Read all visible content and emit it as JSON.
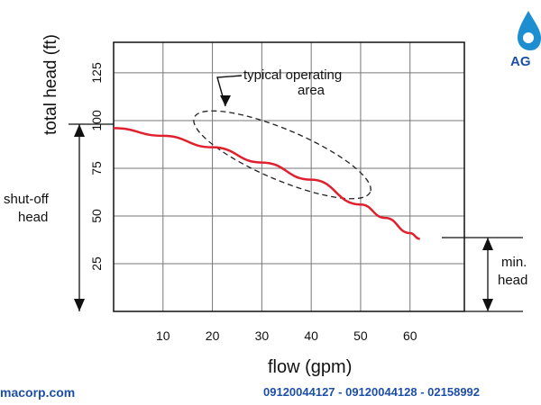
{
  "chart_data": {
    "type": "line",
    "xlabel": "flow (gpm)",
    "ylabel": "total head (ft)",
    "x_ticks": [
      10,
      20,
      30,
      40,
      50,
      60
    ],
    "y_ticks": [
      25,
      50,
      75,
      100,
      125
    ],
    "xlim": [
      0,
      71
    ],
    "ylim": [
      0,
      141
    ],
    "grid": true,
    "series": [
      {
        "color": "#e0202e",
        "x": [
          0,
          10,
          20,
          30,
          40,
          50,
          55,
          60,
          62
        ],
        "y": [
          96,
          92,
          86,
          78,
          69,
          56,
          49,
          41,
          38
        ]
      }
    ],
    "annotations": {
      "operating_area_line1": "typical operating",
      "operating_area_line2": "area",
      "shutoff_line1": "shut-off",
      "shutoff_line2": "head",
      "minhead_line1": "min.",
      "minhead_line2": "head"
    }
  },
  "footer": {
    "website": "macorp.com",
    "phones": "09120044127 - 09120044128 - 02158992"
  },
  "logo": {
    "text": "AG",
    "color": "#1d4fa8"
  }
}
